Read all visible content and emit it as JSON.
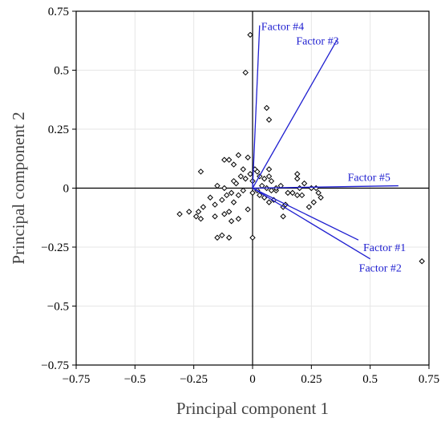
{
  "chart_data": {
    "type": "scatter",
    "title": "",
    "xlabel": "Principal component 1",
    "ylabel": "Principal component 2",
    "xlim": [
      -0.75,
      0.75
    ],
    "ylim": [
      -0.75,
      0.75
    ],
    "xticks": [
      -0.75,
      -0.5,
      -0.25,
      0,
      0.25,
      0.5,
      0.75
    ],
    "yticks": [
      -0.75,
      -0.5,
      -0.25,
      0,
      0.25,
      0.5,
      0.75
    ],
    "xtick_labels": [
      "−0.75",
      "−0.5",
      "−0.25",
      "0",
      "0.25",
      "0.5",
      "0.75"
    ],
    "ytick_labels": [
      "−0.75",
      "−0.5",
      "−0.25",
      "0",
      "0.25",
      "0.5",
      "0.75"
    ],
    "grid": true,
    "marker": "open-diamond",
    "points": [
      [
        -0.01,
        0.65
      ],
      [
        -0.03,
        0.49
      ],
      [
        0.06,
        0.34
      ],
      [
        0.07,
        0.29
      ],
      [
        -0.22,
        0.07
      ],
      [
        -0.15,
        0.01
      ],
      [
        -0.12,
        0.12
      ],
      [
        -0.1,
        0.12
      ],
      [
        -0.06,
        0.14
      ],
      [
        -0.08,
        0.1
      ],
      [
        -0.02,
        0.13
      ],
      [
        -0.04,
        0.08
      ],
      [
        -0.05,
        0.05
      ],
      [
        -0.07,
        0.02
      ],
      [
        -0.03,
        0.04
      ],
      [
        -0.01,
        0.06
      ],
      [
        0.0,
        0.03
      ],
      [
        0.01,
        0.08
      ],
      [
        0.02,
        0.07
      ],
      [
        0.03,
        0.05
      ],
      [
        0.05,
        0.04
      ],
      [
        0.07,
        0.08
      ],
      [
        0.07,
        0.05
      ],
      [
        0.08,
        0.03
      ],
      [
        0.06,
        0.0
      ],
      [
        0.04,
        0.01
      ],
      [
        0.02,
        -0.01
      ],
      [
        0.0,
        -0.02
      ],
      [
        0.03,
        -0.03
      ],
      [
        0.05,
        -0.04
      ],
      [
        0.1,
        -0.01
      ],
      [
        0.09,
        -0.05
      ],
      [
        0.07,
        -0.06
      ],
      [
        -0.08,
        0.03
      ],
      [
        -0.09,
        -0.02
      ],
      [
        -0.11,
        -0.03
      ],
      [
        -0.12,
        0.0
      ],
      [
        -0.13,
        -0.05
      ],
      [
        -0.16,
        -0.07
      ],
      [
        -0.18,
        -0.04
      ],
      [
        -0.21,
        -0.08
      ],
      [
        -0.23,
        -0.1
      ],
      [
        -0.24,
        -0.12
      ],
      [
        -0.27,
        -0.1
      ],
      [
        -0.31,
        -0.11
      ],
      [
        -0.22,
        -0.13
      ],
      [
        -0.16,
        -0.12
      ],
      [
        -0.12,
        -0.11
      ],
      [
        -0.1,
        -0.1
      ],
      [
        -0.08,
        -0.06
      ],
      [
        -0.06,
        -0.03
      ],
      [
        -0.04,
        -0.01
      ],
      [
        -0.02,
        -0.09
      ],
      [
        -0.06,
        -0.13
      ],
      [
        -0.09,
        -0.14
      ],
      [
        -0.15,
        -0.21
      ],
      [
        -0.13,
        -0.2
      ],
      [
        -0.1,
        -0.21
      ],
      [
        0.0,
        -0.21
      ],
      [
        0.14,
        -0.07
      ],
      [
        0.13,
        -0.12
      ],
      [
        0.13,
        -0.08
      ],
      [
        0.15,
        -0.02
      ],
      [
        0.17,
        -0.02
      ],
      [
        0.19,
        -0.03
      ],
      [
        0.21,
        -0.03
      ],
      [
        0.2,
        0.0
      ],
      [
        0.19,
        0.04
      ],
      [
        0.19,
        0.06
      ],
      [
        0.22,
        0.02
      ],
      [
        0.25,
        0.0
      ],
      [
        0.27,
        0.0
      ],
      [
        0.28,
        -0.02
      ],
      [
        0.29,
        -0.04
      ],
      [
        0.26,
        -0.06
      ],
      [
        0.24,
        -0.08
      ],
      [
        0.72,
        -0.31
      ],
      [
        0.12,
        0.01
      ],
      [
        0.1,
        0.0
      ],
      [
        0.08,
        -0.01
      ]
    ],
    "vectors": [
      {
        "label": "Factor #4",
        "x": 0.03,
        "y": 0.69
      },
      {
        "label": "Factor #3",
        "x": 0.36,
        "y": 0.63
      },
      {
        "label": "Factor #5",
        "x": 0.62,
        "y": 0.01
      },
      {
        "label": "Factor #1",
        "x": 0.45,
        "y": -0.22
      },
      {
        "label": "Factor #2",
        "x": 0.5,
        "y": -0.3
      }
    ]
  }
}
